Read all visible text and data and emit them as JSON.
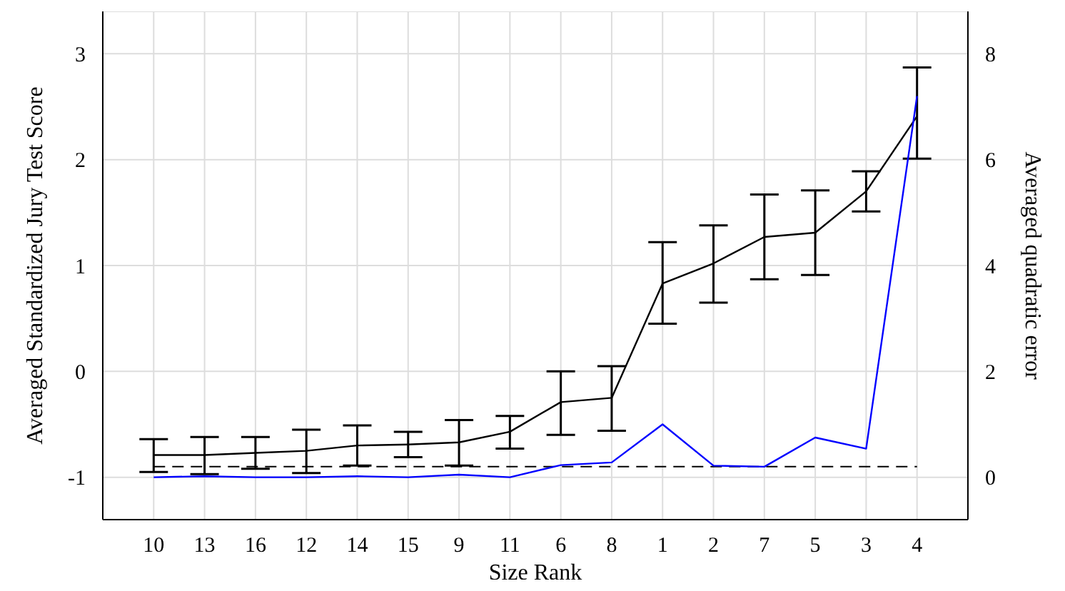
{
  "chart_data": {
    "type": "line",
    "xlabel": "Size Rank",
    "ylabel": "Averaged Standardized Jury Test Score",
    "y2label": "Averaged quadratic error",
    "categories": [
      "10",
      "13",
      "16",
      "12",
      "14",
      "15",
      "9",
      "11",
      "6",
      "8",
      "1",
      "2",
      "7",
      "5",
      "3",
      "4"
    ],
    "series": [
      {
        "color": "#000000",
        "values": [
          -0.79,
          -0.79,
          -0.77,
          -0.75,
          -0.7,
          -0.69,
          -0.67,
          -0.57,
          -0.29,
          -0.25,
          0.83,
          1.02,
          1.27,
          1.31,
          1.7,
          2.41
        ],
        "errors": [
          [
            -0.95,
            -0.64
          ],
          [
            -0.97,
            -0.62
          ],
          [
            -0.92,
            -0.62
          ],
          [
            -0.96,
            -0.55
          ],
          [
            -0.89,
            -0.51
          ],
          [
            -0.81,
            -0.57
          ],
          [
            -0.89,
            -0.46
          ],
          [
            -0.73,
            -0.42
          ],
          [
            -0.6,
            0.0
          ],
          [
            -0.56,
            0.05
          ],
          [
            0.45,
            1.22
          ],
          [
            0.65,
            1.38
          ],
          [
            0.87,
            1.67
          ],
          [
            0.91,
            1.71
          ],
          [
            1.51,
            1.89
          ],
          [
            2.01,
            2.87
          ]
        ]
      },
      {
        "color": "#0000ff",
        "axis": "y2",
        "values": [
          0.0,
          0.02,
          0.0,
          0.0,
          0.02,
          0.0,
          0.05,
          0.0,
          0.23,
          0.28,
          1.0,
          0.22,
          0.2,
          0.75,
          0.54,
          7.2
        ]
      }
    ],
    "ylim": [
      -1.4,
      3.4
    ],
    "yticks": [
      -1,
      0,
      1,
      2,
      3
    ],
    "y2lim": [
      -0.8,
      8.8
    ],
    "y2ticks": [
      0,
      2,
      4,
      6,
      8
    ],
    "ref_lines": [
      {
        "axis": "y2",
        "value": 0.2,
        "color": "#000000",
        "line_style": "dashed"
      }
    ],
    "grid": true,
    "legend": false,
    "marker": "none",
    "line_style": "solid"
  }
}
